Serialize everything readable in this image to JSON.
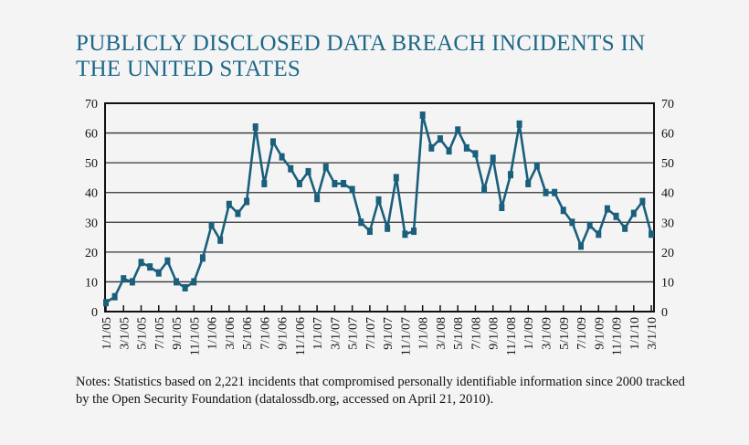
{
  "chart_data": {
    "type": "line",
    "title": "PUBLICLY DISCLOSED DATA BREACH INCIDENTS IN THE UNITED STATES",
    "xlabel": "",
    "ylabel": "",
    "ylim": [
      0,
      70
    ],
    "yticks": [
      0,
      10,
      20,
      30,
      40,
      50,
      60,
      70
    ],
    "yaxis_right": true,
    "grid": "horizontal",
    "x_tick_labels": [
      "1/1/05",
      "3/1/05",
      "5/1/05",
      "7/1/05",
      "9/1/05",
      "11/1/05",
      "1/1/06",
      "3/1/06",
      "5/1/06",
      "7/1/06",
      "9/1/06",
      "11/1/06",
      "1/1/07",
      "3/1/07",
      "5/1/07",
      "7/1/07",
      "9/1/07",
      "11/1/07",
      "1/1/08",
      "3/1/08",
      "5/1/08",
      "7/1/08",
      "9/1/08",
      "11/1/08",
      "1/1/09",
      "3/1/09",
      "5/1/09",
      "7/1/09",
      "9/1/09",
      "11/1/09",
      "1/1/10",
      "3/1/10"
    ],
    "x_start": "1/1/05",
    "x_interval": "monthly",
    "values": [
      3,
      5,
      11,
      10,
      16.5,
      15,
      13,
      17,
      10,
      8,
      10,
      18,
      29,
      24,
      36,
      33,
      37,
      62,
      43,
      57,
      52,
      48,
      43,
      47,
      38,
      48.5,
      43,
      43,
      41,
      30,
      27,
      37.5,
      28,
      45,
      26,
      27,
      66,
      55,
      58,
      54,
      61,
      55,
      53,
      41,
      51.5,
      35,
      46,
      63,
      43,
      49,
      40,
      40,
      34,
      30,
      22,
      29,
      26,
      34.5,
      32,
      28,
      33,
      37,
      26
    ],
    "line_color": "#1a5f7c",
    "marker": "square"
  },
  "notes": "Notes: Statistics based on 2,221 incidents that compromised personally identifiable information since 2000 tracked by the Open Security Foundation (datalossdb.org, accessed on April 21, 2010)."
}
